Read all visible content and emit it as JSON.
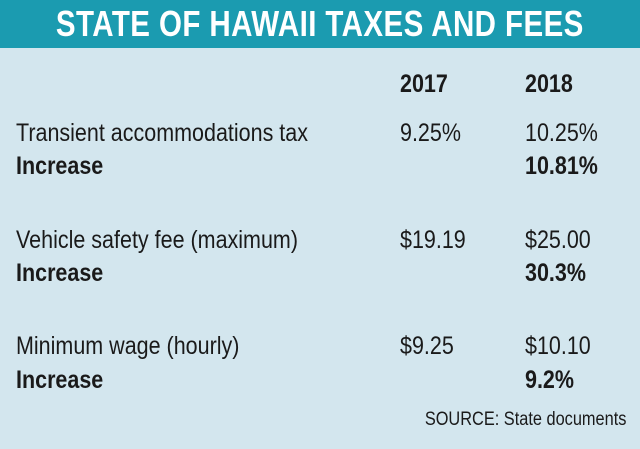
{
  "title": "STATE OF HAWAII TAXES AND FEES",
  "columns": [
    "2017",
    "2018"
  ],
  "rows": [
    {
      "label": "Transient accommodations tax",
      "v2017": "9.25%",
      "v2018": "10.25%",
      "increase_label": "Increase",
      "increase": "10.81%"
    },
    {
      "label": "Vehicle safety fee (maximum)",
      "v2017": "$19.19",
      "v2018": "$25.00",
      "increase_label": "Increase",
      "increase": "30.3%"
    },
    {
      "label": "Minimum wage (hourly)",
      "v2017": "$9.25",
      "v2018": "$10.10",
      "increase_label": "Increase",
      "increase": "9.2%"
    }
  ],
  "source": "SOURCE: State documents",
  "colors": {
    "header_bg": "#1b9bb0",
    "panel_bg": "#d3e6ee",
    "title_text": "#ffffff"
  }
}
